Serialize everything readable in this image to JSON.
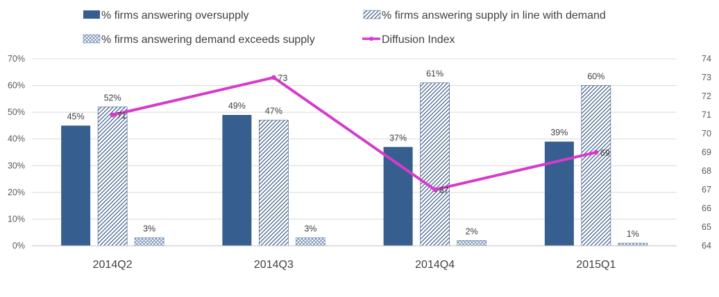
{
  "colors": {
    "oversupply": "#365F8F",
    "in_line_hatch": "#3A5A85",
    "demand_exceeds_hatch": "#5B7BA8",
    "diffusion": "#D63BCC",
    "gridline": "#D9D9D9",
    "axis": "#BFBFBF"
  },
  "chart_data": {
    "type": "bar",
    "categories": [
      "2014Q2",
      "2014Q3",
      "2014Q4",
      "2015Q1"
    ],
    "series": [
      {
        "name": "% firms answering oversupply",
        "values": [
          45,
          49,
          37,
          39
        ],
        "labels": [
          "45%",
          "49%",
          "37%",
          "39%"
        ],
        "style": "solid"
      },
      {
        "name": "% firms answering supply in line with demand",
        "values": [
          52,
          47,
          61,
          60
        ],
        "labels": [
          "52%",
          "47%",
          "61%",
          "60%"
        ],
        "style": "diagonal-hatch"
      },
      {
        "name": "% firms answering demand exceeds supply",
        "values": [
          3,
          3,
          2,
          1
        ],
        "labels": [
          "3%",
          "3%",
          "2%",
          "1%"
        ],
        "style": "cross-hatch"
      }
    ],
    "line_series": {
      "name": "Diffusion Index",
      "values": [
        71,
        73,
        67,
        69
      ],
      "labels": [
        "71",
        "73",
        "67",
        "69"
      ],
      "axis": "right"
    },
    "y_left": {
      "min": 0,
      "max": 70,
      "step": 10,
      "ticks": [
        "0%",
        "10%",
        "20%",
        "30%",
        "40%",
        "50%",
        "60%",
        "70%"
      ]
    },
    "y_right": {
      "min": 64,
      "max": 74,
      "step": 1,
      "ticks": [
        "64",
        "65",
        "66",
        "67",
        "68",
        "69",
        "70",
        "71",
        "72",
        "73",
        "74"
      ]
    },
    "grid": true,
    "legend_position": "top"
  }
}
